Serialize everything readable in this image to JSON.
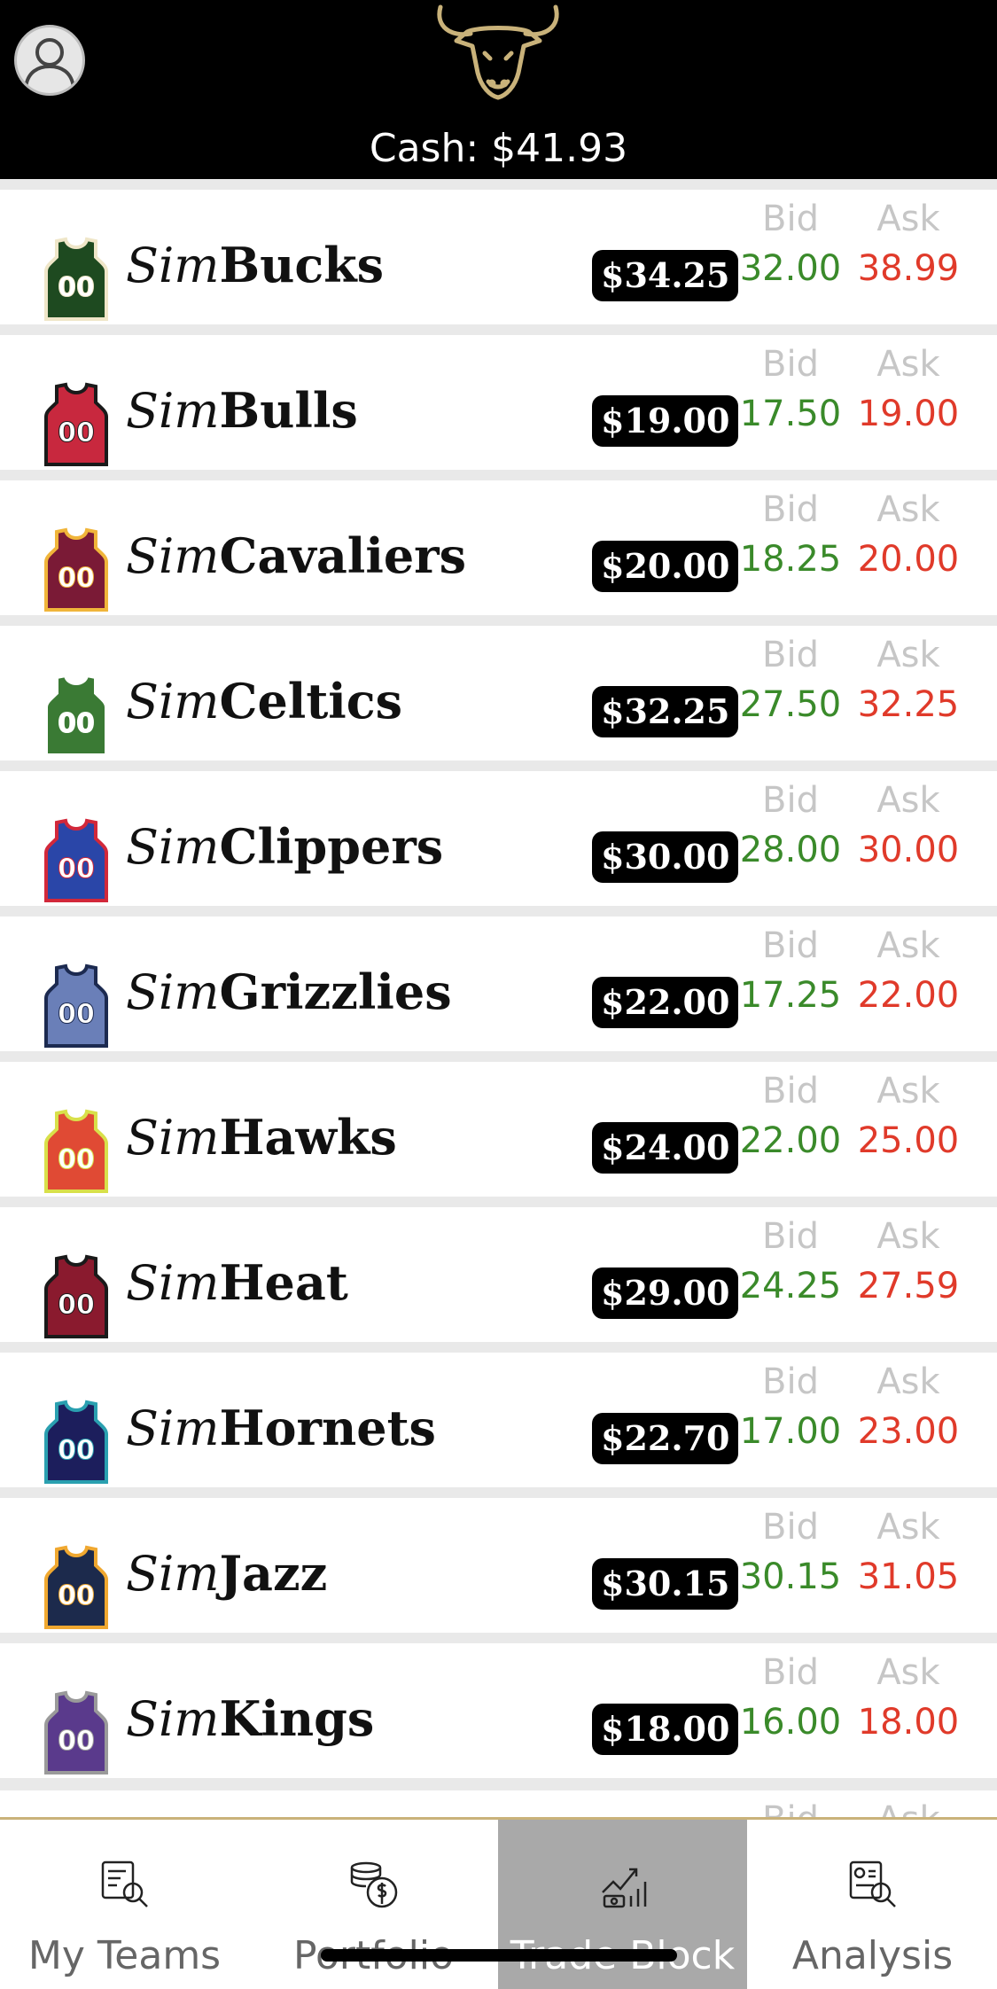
{
  "header": {
    "cash_label": "Cash: $41.93",
    "logo": "bull-head-icon",
    "avatar": "user-avatar-icon"
  },
  "columns": {
    "bid": "Bid",
    "ask": "Ask"
  },
  "teams": [
    {
      "prefix": "Sim",
      "name": "Bucks",
      "price": "$34.25",
      "bid": "32.00",
      "ask": "38.99",
      "jersey_color": "#1e4a20",
      "trim": "#efe6c8",
      "number": "00"
    },
    {
      "prefix": "Sim",
      "name": "Bulls",
      "price": "$19.00",
      "bid": "17.50",
      "ask": "19.00",
      "jersey_color": "#c8283e",
      "trim": "#1a1a1a",
      "number": "00"
    },
    {
      "prefix": "Sim",
      "name": "Cavaliers",
      "price": "$20.00",
      "bid": "18.25",
      "ask": "20.00",
      "jersey_color": "#7a1a36",
      "trim": "#f0b53a",
      "number": "00"
    },
    {
      "prefix": "Sim",
      "name": "Celtics",
      "price": "$32.25",
      "bid": "27.50",
      "ask": "32.25",
      "jersey_color": "#3a7a34",
      "trim": "#ffffff",
      "number": "00"
    },
    {
      "prefix": "Sim",
      "name": "Clippers",
      "price": "$30.00",
      "bid": "28.00",
      "ask": "30.00",
      "jersey_color": "#2a46a8",
      "trim": "#d2283a",
      "number": "00"
    },
    {
      "prefix": "Sim",
      "name": "Grizzlies",
      "price": "$22.00",
      "bid": "17.25",
      "ask": "22.00",
      "jersey_color": "#6a7fb8",
      "trim": "#1c2a50",
      "number": "00"
    },
    {
      "prefix": "Sim",
      "name": "Hawks",
      "price": "$24.00",
      "bid": "22.00",
      "ask": "25.00",
      "jersey_color": "#e04a34",
      "trim": "#d8e04a",
      "number": "00"
    },
    {
      "prefix": "Sim",
      "name": "Heat",
      "price": "$29.00",
      "bid": "24.25",
      "ask": "27.59",
      "jersey_color": "#8a1a2e",
      "trim": "#1a1a1a",
      "number": "00"
    },
    {
      "prefix": "Sim",
      "name": "Hornets",
      "price": "$22.70",
      "bid": "17.00",
      "ask": "23.00",
      "jersey_color": "#1c1e5c",
      "trim": "#2aa0b0",
      "number": "00"
    },
    {
      "prefix": "Sim",
      "name": "Jazz",
      "price": "$30.15",
      "bid": "30.15",
      "ask": "31.05",
      "jersey_color": "#1c2a4c",
      "trim": "#f0a830",
      "number": "00"
    },
    {
      "prefix": "Sim",
      "name": "Kings",
      "price": "$18.00",
      "bid": "16.00",
      "ask": "18.00",
      "jersey_color": "#5a3a8c",
      "trim": "#9a9a9a",
      "number": "00"
    }
  ],
  "nav": [
    {
      "label": "My Teams",
      "icon": "teams-search-icon",
      "active": false
    },
    {
      "label": "Portfolio",
      "icon": "coins-dollar-icon",
      "active": false
    },
    {
      "label": "Trade Block",
      "icon": "trade-chart-icon",
      "active": true
    },
    {
      "label": "Analysis",
      "icon": "analysis-search-icon",
      "active": false
    }
  ]
}
